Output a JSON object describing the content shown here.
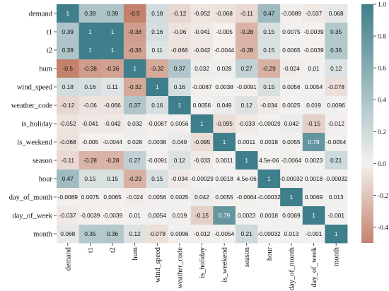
{
  "chart_data": {
    "type": "heatmap",
    "title": "",
    "xlabel": "",
    "ylabel": "",
    "variables": [
      "demand",
      "t1",
      "t2",
      "hum",
      "wind_speed",
      "weather_code",
      "is_holiday",
      "is_weekend",
      "season",
      "hour",
      "day_of_month",
      "day_of_week",
      "month"
    ],
    "matrix": [
      [
        "1",
        "0.39",
        "0.39",
        "-0.5",
        "0.18",
        "-0.12",
        "-0.052",
        "-0.068",
        "-0.11",
        "0.47",
        "-0.0089",
        "-0.037",
        "0.068"
      ],
      [
        "0.39",
        "1",
        "1",
        "-0.38",
        "0.16",
        "-0.06",
        "-0.041",
        "-0.005",
        "-0.28",
        "0.15",
        "0.0075",
        "-0.0039",
        "0.35"
      ],
      [
        "0.39",
        "1",
        "1",
        "-0.36",
        "0.11",
        "-0.066",
        "-0.042",
        "-0.0044",
        "-0.28",
        "0.15",
        "0.0065",
        "-0.0039",
        "0.36"
      ],
      [
        "-0.5",
        "-0.38",
        "-0.36",
        "1",
        "-0.32",
        "0.37",
        "0.032",
        "0.028",
        "0.27",
        "-0.29",
        "-0.024",
        "0.01",
        "0.12"
      ],
      [
        "0.18",
        "0.16",
        "0.11",
        "-0.32",
        "1",
        "0.16",
        "-0.0087",
        "0.0038",
        "-0.0091",
        "0.15",
        "0.0056",
        "0.0054",
        "-0.078"
      ],
      [
        "-0.12",
        "-0.06",
        "-0.066",
        "0.37",
        "0.16",
        "1",
        "0.0056",
        "0.049",
        "0.12",
        "-0.034",
        "0.0025",
        "0.019",
        "0.0096"
      ],
      [
        "-0.052",
        "-0.041",
        "-0.042",
        "0.032",
        "-0.0087",
        "0.0056",
        "1",
        "-0.095",
        "-0.033",
        "-0.00029",
        "0.042",
        "-0.15",
        "-0.012"
      ],
      [
        "-0.068",
        "-0.005",
        "-0.0044",
        "0.028",
        "0.0038",
        "0.049",
        "-0.095",
        "1",
        "0.0011",
        "0.0018",
        "0.0055",
        "0.79",
        "-0.0054"
      ],
      [
        "-0.11",
        "-0.28",
        "-0.28",
        "0.27",
        "-0.0091",
        "0.12",
        "-0.033",
        "0.0011",
        "1",
        "4.5e-06",
        "-0.0064",
        "0.0023",
        "0.21"
      ],
      [
        "0.47",
        "0.15",
        "0.15",
        "-0.29",
        "0.15",
        "-0.034",
        "-0.00029",
        "0.0018",
        "4.5e-06",
        "1",
        "-0.00032",
        "0.0018",
        "-0.00032"
      ],
      [
        "-0.0089",
        "0.0075",
        "0.0065",
        "-0.024",
        "0.0056",
        "0.0025",
        "0.042",
        "0.0055",
        "-0.0064",
        "-0.00032",
        "1",
        "0.0069",
        "0.013"
      ],
      [
        "-0.037",
        "-0.0039",
        "-0.0039",
        "0.01",
        "0.0054",
        "0.019",
        "-0.15",
        "0.79",
        "0.0023",
        "0.0018",
        "0.0069",
        "1",
        "-0.001"
      ],
      [
        "0.068",
        "0.35",
        "0.36",
        "0.12",
        "-0.078",
        "0.0096",
        "-0.012",
        "-0.0054",
        "0.21",
        "-0.00032",
        "0.013",
        "-0.001",
        "1"
      ]
    ],
    "colorbar": {
      "range": [
        -0.5,
        1.0
      ],
      "ticks": [
        "1.0",
        "0.8",
        "0.6",
        "0.4",
        "0.2",
        "0.0",
        "-0.2",
        "-0.4"
      ]
    },
    "colors": {
      "negative": "#c4826c",
      "neutral": "#f3f1ef",
      "positive": "#3f7e8b"
    }
  }
}
